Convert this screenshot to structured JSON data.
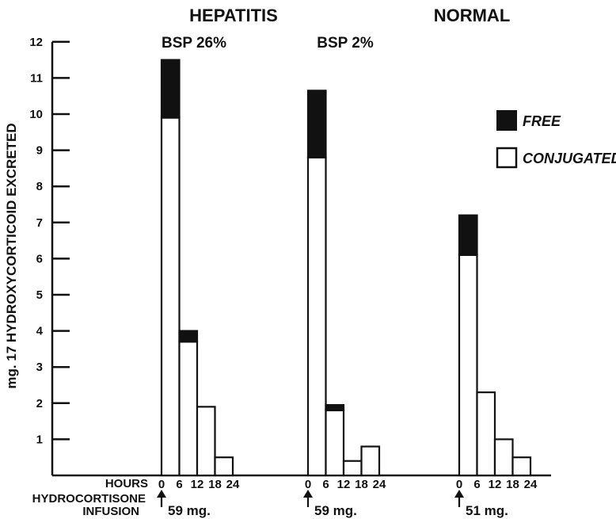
{
  "chart_data": {
    "type": "bar",
    "ylabel": "mg. 17 HYDROXYCORTICOID EXCRETED",
    "ylim": [
      0,
      12
    ],
    "yticks": [
      "1",
      "2",
      "3",
      "4",
      "5",
      "6",
      "7",
      "8",
      "9",
      "10",
      "11",
      "12"
    ],
    "xlabel": "HOURS",
    "infusion_label_line1": "HYDROCORTISONE",
    "infusion_label_line2": "INFUSION",
    "group_titles": [
      "HEPATITIS",
      "NORMAL"
    ],
    "legend_position": "right",
    "series": [
      {
        "name": "FREE",
        "color": "#111111"
      },
      {
        "name": "CONJUGATED",
        "color": "#ffffff"
      }
    ],
    "panels": [
      {
        "bsp_label": "BSP 26%",
        "time_ticks": [
          "0",
          "6",
          "12",
          "18",
          "24"
        ],
        "intervals": [
          "0-6",
          "6-12",
          "12-18",
          "18-24"
        ],
        "conjugated": [
          9.9,
          3.7,
          1.9,
          0.5
        ],
        "free": [
          1.6,
          0.3,
          0.0,
          0.0
        ],
        "infusion_dose": "59 mg."
      },
      {
        "bsp_label": "BSP 2%",
        "time_ticks": [
          "0",
          "6",
          "12",
          "18",
          "24"
        ],
        "intervals": [
          "0-6",
          "6-12",
          "12-18",
          "18-24"
        ],
        "conjugated": [
          8.8,
          1.8,
          0.4,
          0.8
        ],
        "free": [
          1.85,
          0.15,
          0.0,
          0.0
        ],
        "infusion_dose": "59 mg."
      },
      {
        "bsp_label": "",
        "time_ticks": [
          "0",
          "6",
          "12",
          "18",
          "24"
        ],
        "intervals": [
          "0-6",
          "6-12",
          "12-18",
          "18-24"
        ],
        "conjugated": [
          6.1,
          2.3,
          1.0,
          0.5
        ],
        "free": [
          1.1,
          0.0,
          0.0,
          0.0
        ],
        "infusion_dose": "51 mg."
      }
    ]
  }
}
